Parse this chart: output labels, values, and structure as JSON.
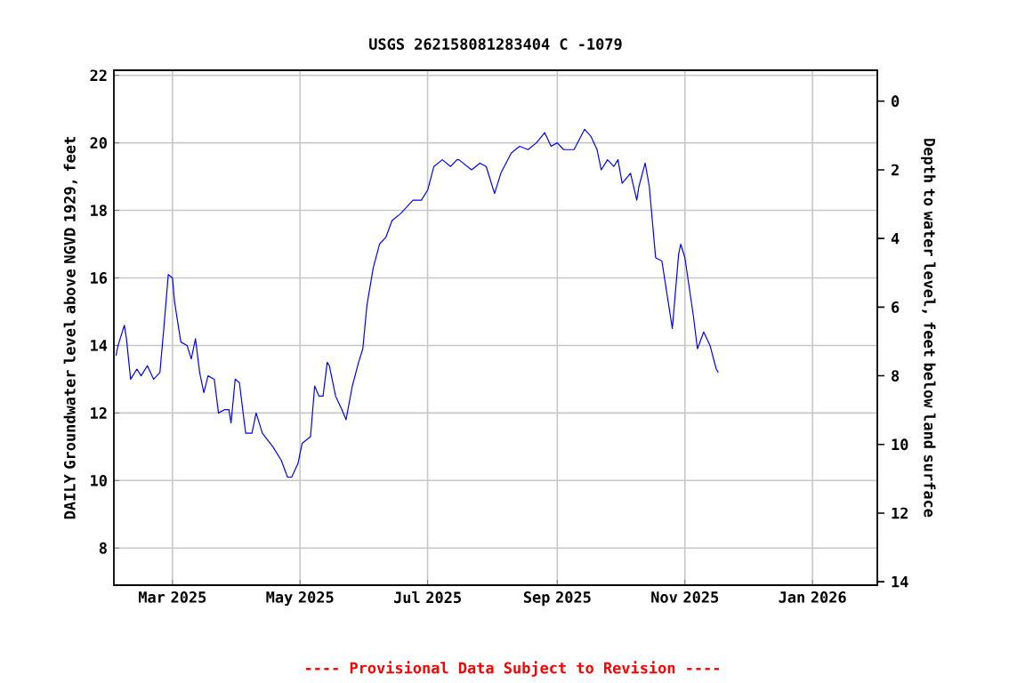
{
  "chart_data": {
    "type": "line",
    "title": "USGS 262158081283404 C  -1079",
    "ylabel": "DAILY Groundwater level above NGVD 1929, feet",
    "y2label": "Depth to water level, feet below land surface",
    "annotations": [
      "---- Provisional Data Subject to Revision ----"
    ],
    "xlim": [
      "2025-02-01",
      "2026-02-01"
    ],
    "xticks": [
      {
        "value": "2025-03-01",
        "label": "Mar 2025"
      },
      {
        "value": "2025-05-01",
        "label": "May 2025"
      },
      {
        "value": "2025-07-01",
        "label": "Jul 2025"
      },
      {
        "value": "2025-09-01",
        "label": "Sep 2025"
      },
      {
        "value": "2025-11-01",
        "label": "Nov 2025"
      },
      {
        "value": "2026-01-01",
        "label": "Jan 2026"
      }
    ],
    "ylim": [
      6.9,
      22.15
    ],
    "yticks": [
      8,
      10,
      12,
      14,
      16,
      18,
      20,
      22
    ],
    "y2lim": [
      14.1,
      -0.9
    ],
    "y2ticks": [
      0,
      2,
      4,
      6,
      8,
      10,
      12,
      14
    ],
    "grid": true,
    "series": [
      {
        "color": "#0000ff",
        "x": [
          "2025-02-02",
          "2025-02-03",
          "2025-02-06",
          "2025-02-07",
          "2025-02-09",
          "2025-02-12",
          "2025-02-14",
          "2025-02-17",
          "2025-02-20",
          "2025-02-23",
          "2025-02-25",
          "2025-02-27",
          "2025-03-01",
          "2025-03-02",
          "2025-03-05",
          "2025-03-08",
          "2025-03-10",
          "2025-03-12",
          "2025-03-14",
          "2025-03-16",
          "2025-03-18",
          "2025-03-21",
          "2025-03-23",
          "2025-03-26",
          "2025-03-28",
          "2025-03-29",
          "2025-03-31",
          "2025-04-02",
          "2025-04-05",
          "2025-04-08",
          "2025-04-10",
          "2025-04-13",
          "2025-04-18",
          "2025-04-22",
          "2025-04-25",
          "2025-04-27",
          "2025-04-30",
          "2025-05-02",
          "2025-05-06",
          "2025-05-08",
          "2025-05-10",
          "2025-05-12",
          "2025-05-14",
          "2025-05-15",
          "2025-05-18",
          "2025-05-21",
          "2025-05-23",
          "2025-05-26",
          "2025-05-29",
          "2025-05-31",
          "2025-06-02",
          "2025-06-05",
          "2025-06-08",
          "2025-06-11",
          "2025-06-14",
          "2025-06-18",
          "2025-06-24",
          "2025-06-28",
          "2025-07-01",
          "2025-07-04",
          "2025-07-08",
          "2025-07-12",
          "2025-07-15",
          "2025-07-16",
          "2025-07-22",
          "2025-07-26",
          "2025-07-29",
          "2025-08-02",
          "2025-08-05",
          "2025-08-10",
          "2025-08-14",
          "2025-08-18",
          "2025-08-22",
          "2025-08-26",
          "2025-08-29",
          "2025-09-01",
          "2025-09-04",
          "2025-09-09",
          "2025-09-14",
          "2025-09-17",
          "2025-09-20",
          "2025-09-22",
          "2025-09-25",
          "2025-09-28",
          "2025-09-30",
          "2025-10-02",
          "2025-10-06",
          "2025-10-09",
          "2025-10-10",
          "2025-10-13",
          "2025-10-15",
          "2025-10-18",
          "2025-10-21",
          "2025-10-24",
          "2025-10-26",
          "2025-10-29",
          "2025-10-30",
          "2025-11-01",
          "2025-11-05",
          "2025-11-07",
          "2025-11-10",
          "2025-11-13",
          "2025-11-16",
          "2025-11-17"
        ],
        "values": [
          13.7,
          14.0,
          14.6,
          14.2,
          13.0,
          13.3,
          13.1,
          13.4,
          13.0,
          13.2,
          14.6,
          16.1,
          16.0,
          15.3,
          14.1,
          14.0,
          13.6,
          14.2,
          13.2,
          12.6,
          13.1,
          13.0,
          12.0,
          12.1,
          12.1,
          11.7,
          13.0,
          12.9,
          11.4,
          11.4,
          12.0,
          11.4,
          11.0,
          10.6,
          10.1,
          10.1,
          10.5,
          11.1,
          11.3,
          12.8,
          12.5,
          12.5,
          13.5,
          13.4,
          12.5,
          12.1,
          11.8,
          12.8,
          13.5,
          13.9,
          15.2,
          16.3,
          17.0,
          17.2,
          17.7,
          17.9,
          18.3,
          18.3,
          18.6,
          19.3,
          19.5,
          19.3,
          19.5,
          19.5,
          19.2,
          19.4,
          19.3,
          18.5,
          19.1,
          19.7,
          19.9,
          19.8,
          20.0,
          20.3,
          19.9,
          20.0,
          19.8,
          19.8,
          20.4,
          20.2,
          19.8,
          19.2,
          19.5,
          19.3,
          19.5,
          18.8,
          19.1,
          18.3,
          18.7,
          19.4,
          18.7,
          16.6,
          16.5,
          15.3,
          14.5,
          16.7,
          17.0,
          16.6,
          14.9,
          13.9,
          14.4,
          14.0,
          13.3,
          13.2
        ]
      }
    ]
  }
}
